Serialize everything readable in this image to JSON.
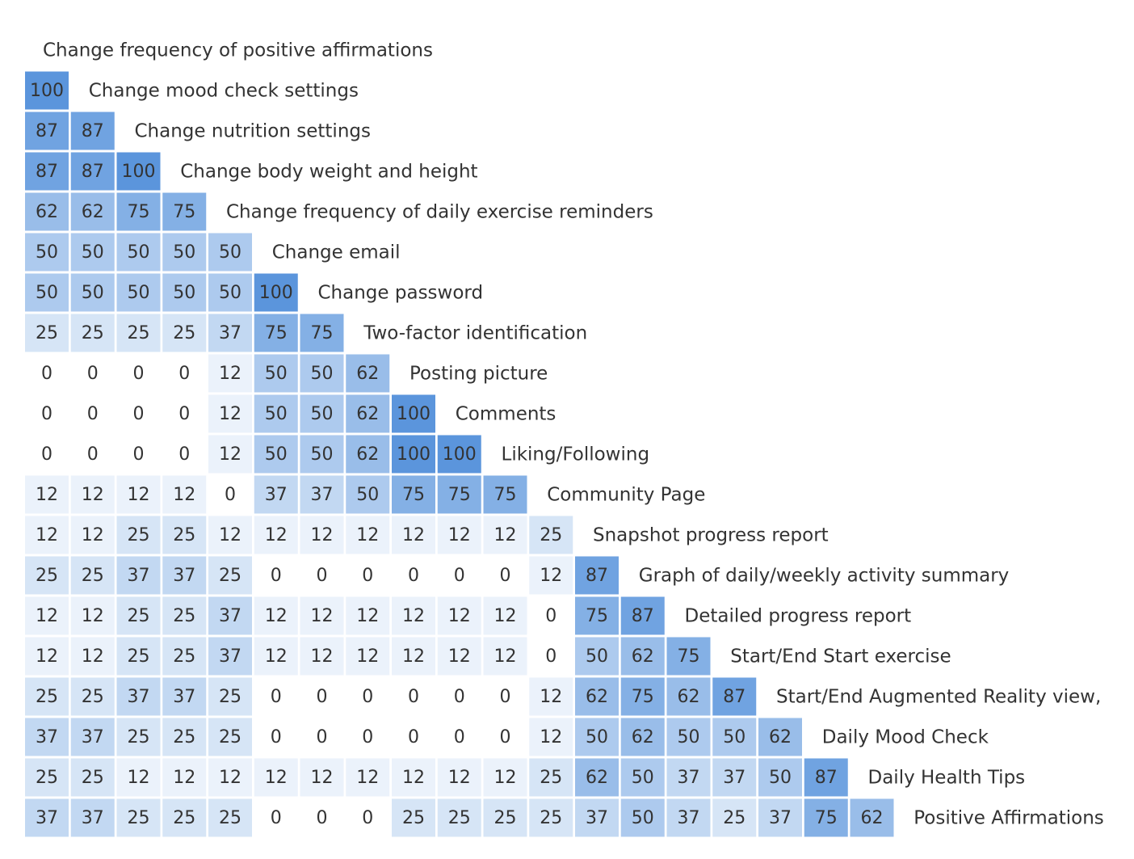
{
  "chart_data": {
    "type": "similarity-matrix",
    "color": "#5b95dc",
    "categories": [
      "Change frequency of positive affirmations",
      "Change mood check settings",
      "Change nutrition settings",
      "Change body weight and height",
      "Change frequency of daily exercise reminders",
      "Change email",
      "Change password",
      "Two-factor identification",
      "Posting picture",
      "Comments",
      "Liking/Following",
      "Community Page",
      "Snapshot progress report",
      "Graph of daily/weekly activity summary",
      "Detailed progress report",
      "Start/End Start exercise",
      "Start/End Augmented Reality view,",
      "Daily Mood Check",
      "Daily Health Tips",
      "Positive Affirmations"
    ],
    "rows": [
      [],
      [
        100
      ],
      [
        87,
        87
      ],
      [
        87,
        87,
        100
      ],
      [
        62,
        62,
        75,
        75
      ],
      [
        50,
        50,
        50,
        50,
        50
      ],
      [
        50,
        50,
        50,
        50,
        50,
        100
      ],
      [
        25,
        25,
        25,
        25,
        37,
        75,
        75
      ],
      [
        0,
        0,
        0,
        0,
        12,
        50,
        50,
        62
      ],
      [
        0,
        0,
        0,
        0,
        12,
        50,
        50,
        62,
        100
      ],
      [
        0,
        0,
        0,
        0,
        12,
        50,
        50,
        62,
        100,
        100
      ],
      [
        12,
        12,
        12,
        12,
        0,
        37,
        37,
        50,
        75,
        75,
        75
      ],
      [
        12,
        12,
        25,
        25,
        12,
        12,
        12,
        12,
        12,
        12,
        12,
        25
      ],
      [
        25,
        25,
        37,
        37,
        25,
        0,
        0,
        0,
        0,
        0,
        0,
        12,
        87
      ],
      [
        12,
        12,
        25,
        25,
        37,
        12,
        12,
        12,
        12,
        12,
        12,
        0,
        75,
        87
      ],
      [
        12,
        12,
        25,
        25,
        37,
        12,
        12,
        12,
        12,
        12,
        12,
        0,
        50,
        62,
        75
      ],
      [
        25,
        25,
        37,
        37,
        25,
        0,
        0,
        0,
        0,
        0,
        0,
        12,
        62,
        75,
        62,
        87
      ],
      [
        37,
        37,
        25,
        25,
        25,
        0,
        0,
        0,
        0,
        0,
        0,
        12,
        50,
        62,
        50,
        50,
        62
      ],
      [
        25,
        25,
        12,
        12,
        12,
        12,
        12,
        12,
        12,
        12,
        12,
        25,
        62,
        50,
        37,
        37,
        50,
        87
      ],
      [
        37,
        37,
        25,
        25,
        25,
        0,
        0,
        0,
        25,
        25,
        25,
        25,
        37,
        50,
        37,
        25,
        37,
        75,
        62
      ]
    ]
  }
}
